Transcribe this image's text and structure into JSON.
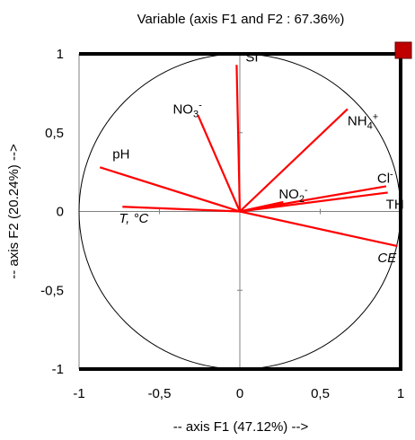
{
  "chart_data": {
    "type": "scatter",
    "subtype": "correlation-circle",
    "title": "Variable (axis F1 and F2 : 67.36%)",
    "xlabel": "-- axis F1 (47.12%) -->",
    "ylabel": "-- axis F2 (20.24%) -->",
    "xlim": [
      -1,
      1
    ],
    "ylim": [
      -1,
      1
    ],
    "xticks": [
      "-1",
      "-0,5",
      "0",
      "0,5",
      "1"
    ],
    "yticks": [
      "-1",
      "-0,5",
      "0",
      "0,5",
      "1"
    ],
    "grid": false,
    "unit_circle": true,
    "vector_color": "#ff0000",
    "marker_color": "#c00000",
    "variables": [
      {
        "name": "SI",
        "base": "SI",
        "sub": "",
        "sup": "",
        "italic": false,
        "x": -0.02,
        "y": 0.93
      },
      {
        "name": "NO3-",
        "base": "NO",
        "sub": "3",
        "sup": "-",
        "italic": false,
        "x": -0.26,
        "y": 0.61
      },
      {
        "name": "NH4+",
        "base": "NH",
        "sub": "4",
        "sup": "+",
        "italic": false,
        "x": 0.67,
        "y": 0.65
      },
      {
        "name": "pH",
        "base": "pH",
        "sub": "",
        "sup": "",
        "italic": false,
        "x": -0.87,
        "y": 0.28
      },
      {
        "name": "Cl-",
        "base": "Cl",
        "sub": "",
        "sup": "-",
        "italic": false,
        "x": 0.91,
        "y": 0.16
      },
      {
        "name": "NO2-",
        "base": "NO",
        "sub": "2",
        "sup": "-",
        "italic": false,
        "x": 0.27,
        "y": 0.06
      },
      {
        "name": "TH",
        "base": "TH",
        "sub": "",
        "sup": "",
        "italic": false,
        "x": 0.92,
        "y": 0.12
      },
      {
        "name": "T, °C",
        "base": "T, °C",
        "sub": "",
        "sup": "",
        "italic": true,
        "x": -0.73,
        "y": 0.03
      },
      {
        "name": "CE",
        "base": "CE",
        "sub": "",
        "sup": "",
        "italic": true,
        "x": 0.98,
        "y": -0.22
      }
    ]
  }
}
